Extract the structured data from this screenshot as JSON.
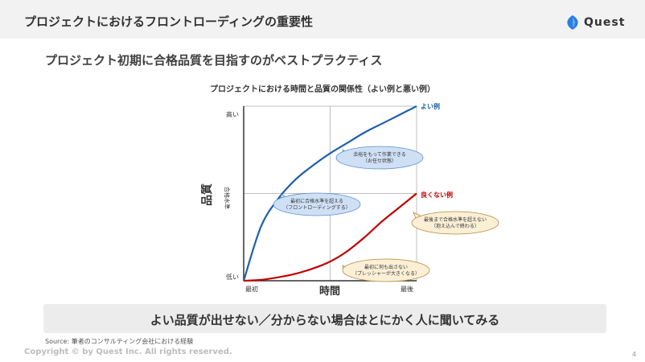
{
  "header": {
    "title": "プロジェクトにおけるフロントローディングの重要性"
  },
  "logo": {
    "text": "Quest",
    "icon": "blue-leaf-icon",
    "icon_color": "#2b7de1"
  },
  "subtitle": "プロジェクト初期に合格品質を目指すのがベストプラクティス",
  "chart_title": "プロジェクトにおける時間と品質の関係性（よい例と悪い例）",
  "chart_data": {
    "type": "line",
    "x_label": "時間",
    "y_label": "品質",
    "x_ticks": [
      "最初",
      "最後"
    ],
    "y_ticks": [
      "低い",
      "合格水準",
      "高い"
    ],
    "x_range": [
      0,
      1
    ],
    "y_range": [
      0,
      1
    ],
    "pass_level": 0.5,
    "midpoint_x": 0.5,
    "series": [
      {
        "name": "よい例",
        "color": "#1f5fad",
        "x": [
          0,
          0.1,
          0.2,
          0.3,
          0.4,
          0.5,
          0.6,
          0.7,
          0.8,
          0.9,
          1.0
        ],
        "y": [
          0,
          0.31,
          0.47,
          0.58,
          0.66,
          0.73,
          0.79,
          0.85,
          0.9,
          0.95,
          1.0
        ]
      },
      {
        "name": "良くない例",
        "color": "#c00000",
        "x": [
          0,
          0.1,
          0.2,
          0.3,
          0.4,
          0.5,
          0.6,
          0.7,
          0.8,
          0.9,
          1.0
        ],
        "y": [
          0,
          0.005,
          0.02,
          0.04,
          0.07,
          0.11,
          0.17,
          0.25,
          0.34,
          0.42,
          0.5
        ]
      }
    ],
    "annotations": [
      {
        "lines": [
          "余裕をもって作業できる",
          "（お任せ状態）"
        ],
        "style": "blue"
      },
      {
        "lines": [
          "最初に合格水準を超える",
          "（フロントローディングする）"
        ],
        "style": "blue"
      },
      {
        "lines": [
          "最後まで合格水準を超えない",
          "（抱え込んで終わる）"
        ],
        "style": "tan"
      },
      {
        "lines": [
          "最初に何も出さない",
          "（プレッシャーが大きくなる）"
        ],
        "style": "tan"
      }
    ]
  },
  "bottom_message": "よい品質が出せない／分からない場合はとにかく人に聞いてみる",
  "source": "Source: 筆者のコンサルティング会社における経験",
  "copyright": "Copyright © by Quest Inc. All rights reserved.",
  "page_number": "4"
}
